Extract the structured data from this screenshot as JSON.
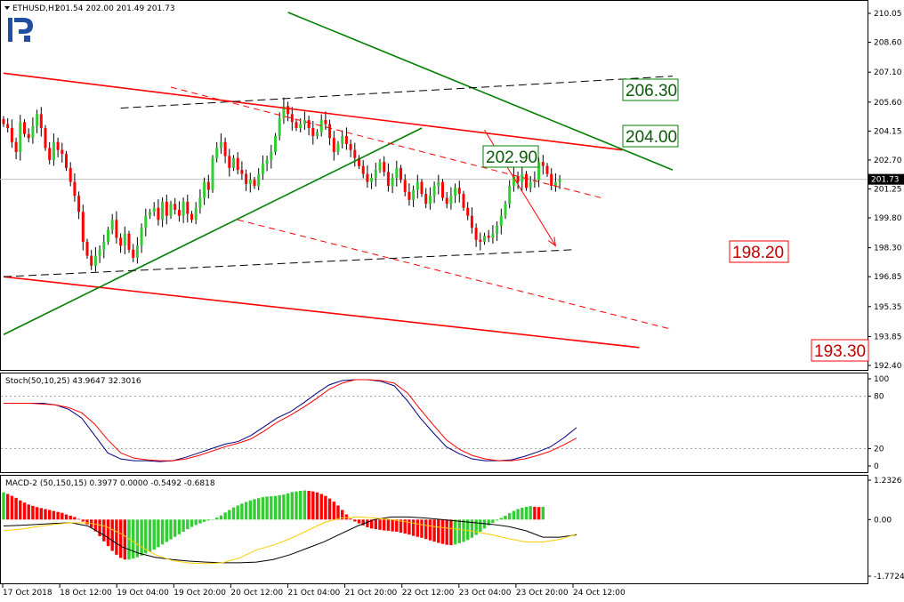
{
  "header": {
    "symbol": "ETHUSD,H1",
    "ohlc": "201.54 202.00 201.49 201.73"
  },
  "colors": {
    "bull": "#32cd32",
    "bear": "#ff0000",
    "green_line": "#008000",
    "red_line": "#ff0000",
    "dash_black": "#000000",
    "stoch_main": "#000080",
    "stoch_signal": "#ff0000",
    "macd_signal": "#ffcc00",
    "grid": "#c8c8c8",
    "label_green_bg": "#ffffff",
    "label_red_bg": "#ffffff"
  },
  "chart_data": [
    {
      "type": "candlestick",
      "name": "price",
      "ylim": [
        192.4,
        210.05
      ],
      "y_ticks": [
        "210.05",
        "208.60",
        "207.10",
        "205.60",
        "204.15",
        "202.70",
        "201.25",
        "199.80",
        "198.30",
        "196.85",
        "195.35",
        "193.85",
        "192.40"
      ],
      "current_price": "201.73",
      "x_ticks": [
        "17 Oct 2018",
        "18 Oct 12:00",
        "19 Oct 04:00",
        "19 Oct 20:00",
        "20 Oct 12:00",
        "21 Oct 04:00",
        "21 Oct 20:00",
        "22 Oct 12:00",
        "23 Oct 04:00",
        "23 Oct 20:00",
        "24 Oct 12:00"
      ],
      "close_path": [
        204.5,
        204.3,
        203.6,
        203.1,
        204.6,
        204.0,
        203.8,
        204.4,
        205.0,
        204.3,
        203.3,
        202.7,
        203.6,
        203.2,
        203.0,
        202.3,
        201.6,
        200.9,
        200.1,
        198.6,
        197.9,
        197.4,
        197.9,
        198.2,
        198.6,
        199.2,
        199.7,
        198.8,
        198.4,
        199.0,
        198.2,
        197.8,
        198.4,
        199.3,
        199.9,
        200.1,
        200.3,
        199.7,
        200.6,
        199.9,
        200.5,
        200.2,
        199.9,
        200.6,
        200.0,
        199.7,
        200.3,
        200.8,
        201.6,
        201.2,
        202.8,
        203.3,
        203.6,
        202.9,
        202.3,
        202.8,
        202.2,
        202.0,
        201.5,
        201.7,
        201.4,
        202.0,
        202.5,
        202.7,
        203.1,
        203.9,
        204.8,
        205.4,
        205.0,
        204.6,
        204.3,
        204.5,
        204.7,
        204.3,
        203.9,
        204.1,
        204.7,
        204.5,
        203.8,
        203.1,
        203.5,
        203.9,
        203.5,
        203.2,
        202.8,
        202.4,
        202.0,
        201.6,
        201.8,
        202.2,
        202.6,
        202.1,
        201.4,
        201.8,
        202.3,
        201.7,
        201.1,
        200.7,
        201.2,
        201.6,
        201.0,
        200.5,
        200.9,
        201.4,
        201.6,
        200.8,
        200.5,
        200.9,
        201.3,
        201.0,
        200.3,
        199.9,
        199.3,
        198.7,
        198.6,
        198.9,
        198.8,
        199.0,
        199.4,
        199.9,
        200.5,
        201.4,
        201.9,
        201.6,
        202.0,
        201.3,
        201.6,
        201.7,
        202.6,
        202.4,
        202.0,
        201.4,
        201.6,
        201.73
      ],
      "trend_lines": [
        {
          "color": "red",
          "style": "solid",
          "p1": [
            0,
            207.05
          ],
          "p2": [
            148,
            203.2
          ]
        },
        {
          "color": "red",
          "style": "solid",
          "p1": [
            0,
            196.85
          ],
          "p2": [
            152,
            193.3
          ]
        },
        {
          "color": "green",
          "style": "solid",
          "p1": [
            0,
            193.95
          ],
          "p2": [
            100,
            204.3
          ]
        },
        {
          "color": "green",
          "style": "solid",
          "p1": [
            68,
            210.1
          ],
          "p2": [
            160,
            202.2
          ]
        },
        {
          "color": "black",
          "style": "dashed",
          "p1": [
            0,
            196.85
          ],
          "p2": [
            136,
            198.2
          ]
        },
        {
          "color": "black",
          "style": "dashed",
          "p1": [
            28,
            205.3
          ],
          "p2": [
            160,
            206.9
          ]
        },
        {
          "color": "red",
          "style": "dashed",
          "p1": [
            40,
            206.35
          ],
          "p2": [
            143,
            200.8
          ]
        },
        {
          "color": "red",
          "style": "dashed",
          "p1": [
            56,
            199.7
          ],
          "p2": [
            160,
            194.2
          ]
        }
      ],
      "arrow": {
        "from": [
          115,
          204.2
        ],
        "to": [
          132,
          198.4
        ]
      },
      "levels": [
        {
          "label": "206.30",
          "kind": "green"
        },
        {
          "label": "204.00",
          "kind": "green"
        },
        {
          "label": "202.90",
          "kind": "green"
        },
        {
          "label": "198.20",
          "kind": "red"
        },
        {
          "label": "193.30",
          "kind": "red"
        }
      ]
    },
    {
      "type": "line",
      "name": "Stoch(50,10,25)",
      "legend": "Stoch(50,10,25) 43.9647 32.3016",
      "ylim": [
        0,
        100
      ],
      "y_ticks": [
        "100",
        "80",
        "20",
        "0"
      ],
      "levels_dotted": [
        80,
        20
      ],
      "series": [
        {
          "key": "main",
          "values": [
            72,
            72,
            72,
            72,
            70,
            65,
            55,
            35,
            15,
            8,
            6,
            6,
            5,
            6,
            10,
            15,
            20,
            25,
            28,
            35,
            45,
            55,
            62,
            72,
            83,
            93,
            98,
            99,
            99,
            97,
            92,
            75,
            55,
            38,
            22,
            14,
            8,
            6,
            6,
            7,
            11,
            16,
            22,
            32,
            44
          ]
        },
        {
          "key": "signal",
          "values": [
            72,
            72,
            72,
            71,
            70,
            67,
            61,
            48,
            30,
            15,
            9,
            7,
            6,
            6,
            8,
            12,
            17,
            22,
            26,
            31,
            40,
            50,
            58,
            67,
            77,
            88,
            95,
            99,
            99,
            98,
            95,
            84,
            65,
            47,
            30,
            19,
            12,
            8,
            6,
            6,
            8,
            12,
            17,
            24,
            32
          ]
        }
      ]
    },
    {
      "type": "bar",
      "name": "MACD-2 (50,150,15)",
      "legend": "MACD-2 (50,150,15) 0.3977 0.0000 -0.5492 -0.6818",
      "ylim": [
        -1.7724,
        1.2326
      ],
      "y_ticks": [
        "1.2326",
        "0.00",
        "-1.7724"
      ],
      "histogram": [
        0.85,
        0.8,
        0.74,
        0.68,
        0.6,
        0.53,
        0.47,
        0.43,
        0.39,
        0.36,
        0.33,
        0.3,
        0.27,
        0.24,
        0.21,
        0.16,
        0.12,
        0.08,
        0.02,
        -0.06,
        -0.15,
        -0.25,
        -0.37,
        -0.52,
        -0.68,
        -0.83,
        -0.98,
        -1.1,
        -1.2,
        -1.25,
        -1.25,
        -1.22,
        -1.18,
        -1.13,
        -1.06,
        -1.0,
        -0.94,
        -0.86,
        -0.78,
        -0.7,
        -0.62,
        -0.54,
        -0.46,
        -0.38,
        -0.3,
        -0.23,
        -0.17,
        -0.12,
        -0.07,
        -0.03,
        0.01,
        0.06,
        0.13,
        0.22,
        0.3,
        0.38,
        0.44,
        0.5,
        0.55,
        0.6,
        0.64,
        0.67,
        0.7,
        0.72,
        0.73,
        0.74,
        0.76,
        0.78,
        0.82,
        0.86,
        0.88,
        0.9,
        0.91,
        0.9,
        0.88,
        0.85,
        0.8,
        0.74,
        0.66,
        0.56,
        0.44,
        0.3,
        0.16,
        0.03,
        -0.06,
        -0.12,
        -0.18,
        -0.24,
        -0.28,
        -0.3,
        -0.32,
        -0.34,
        -0.35,
        -0.37,
        -0.38,
        -0.41,
        -0.44,
        -0.47,
        -0.51,
        -0.54,
        -0.57,
        -0.61,
        -0.65,
        -0.69,
        -0.73,
        -0.76,
        -0.79,
        -0.8,
        -0.78,
        -0.74,
        -0.7,
        -0.64,
        -0.57,
        -0.48,
        -0.38,
        -0.28,
        -0.18,
        -0.1,
        -0.03,
        0.05,
        0.12,
        0.2,
        0.27,
        0.33,
        0.37,
        0.4,
        0.42,
        0.4,
        0.39,
        0.4
      ],
      "series": [
        {
          "key": "macd",
          "values": [
            -0.2,
            -0.18,
            -0.15,
            -0.12,
            -0.1,
            -0.2,
            -0.5,
            -0.85,
            -1.05,
            -1.18,
            -1.25,
            -1.3,
            -1.33,
            -1.35,
            -1.35,
            -1.33,
            -1.25,
            -1.1,
            -0.9,
            -0.7,
            -0.45,
            -0.2,
            0.0,
            0.08,
            0.08,
            0.05,
            0.0,
            -0.05,
            -0.1,
            -0.15,
            -0.22,
            -0.35,
            -0.55,
            -0.55,
            -0.48
          ]
        },
        {
          "key": "signal",
          "values": [
            -0.35,
            -0.3,
            -0.22,
            -0.15,
            -0.1,
            -0.1,
            -0.2,
            -0.45,
            -0.8,
            -1.1,
            -1.28,
            -1.36,
            -1.38,
            -1.35,
            -1.2,
            -0.95,
            -0.8,
            -0.6,
            -0.35,
            -0.1,
            0.05,
            0.08,
            0.05,
            0.0,
            -0.08,
            -0.18,
            -0.25,
            -0.3,
            -0.38,
            -0.48,
            -0.6,
            -0.7,
            -0.7,
            -0.62,
            -0.45
          ]
        }
      ]
    }
  ]
}
